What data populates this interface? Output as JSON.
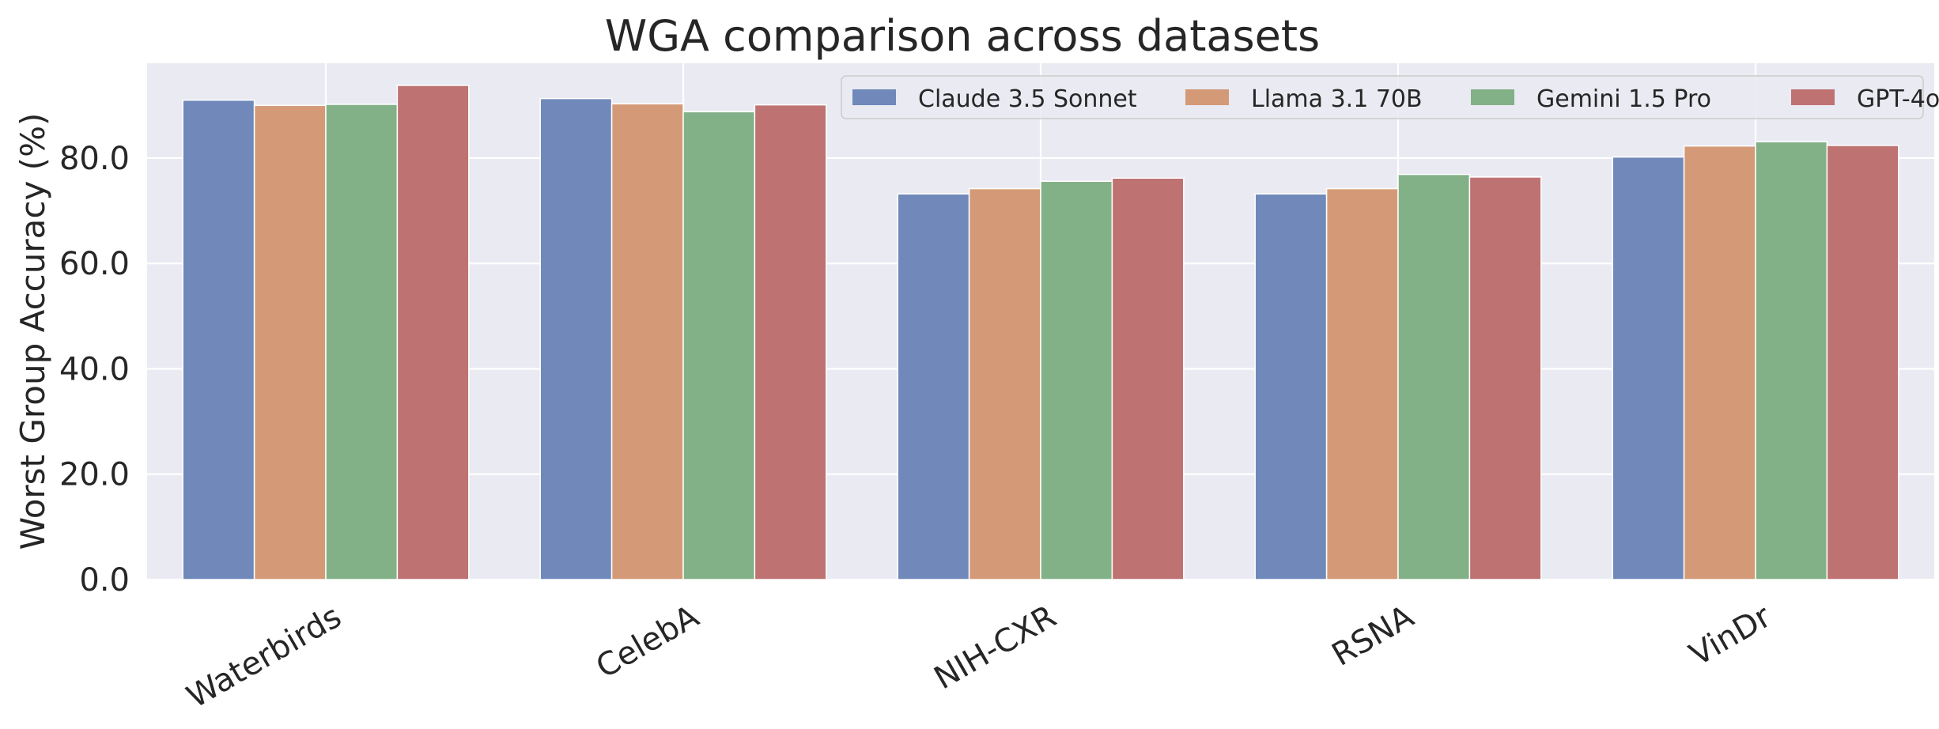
{
  "chart_data": {
    "type": "bar",
    "title": "WGA comparison across datasets",
    "xlabel": "",
    "ylabel": "Worst Group Accuracy (%)",
    "categories": [
      "Waterbirds",
      "CelebA",
      "NIH-CXR",
      "RSNA",
      "VinDr"
    ],
    "ylim": [
      0,
      98
    ],
    "yticks": [
      0,
      20,
      40,
      60,
      80
    ],
    "ytick_labels": [
      "0.0",
      "20.0",
      "40.0",
      "60.0",
      "80.0"
    ],
    "grid": true,
    "legend_position": "top-right",
    "series": [
      {
        "name": "Claude 3.5 Sonnet",
        "color": "#7089ba",
        "values": [
          91.0,
          91.3,
          73.2,
          73.2,
          80.2
        ]
      },
      {
        "name": "Llama 3.1 70B",
        "color": "#d49a77",
        "values": [
          90.0,
          90.3,
          74.2,
          74.2,
          82.3
        ]
      },
      {
        "name": "Gemini 1.5 Pro",
        "color": "#83b187",
        "values": [
          90.2,
          88.8,
          75.6,
          76.9,
          83.1
        ]
      },
      {
        "name": "GPT-4o",
        "color": "#be7272",
        "values": [
          93.8,
          90.1,
          76.2,
          76.4,
          82.4
        ]
      }
    ]
  },
  "colors": {
    "plot_background": "#eaeaf2",
    "grid": "#ffffff",
    "text": "#262626"
  }
}
